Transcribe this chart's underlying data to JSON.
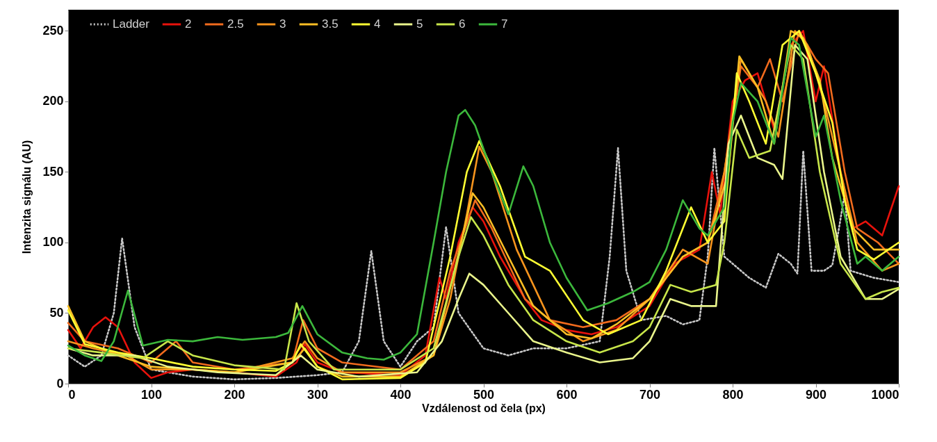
{
  "chart_data": {
    "type": "line",
    "xlabel": "Vzdálenost od čela (px)",
    "ylabel": "Intenzita signálu (AU)",
    "xlim": [
      0,
      1000
    ],
    "xticks": [
      0,
      100,
      200,
      300,
      400,
      500,
      600,
      700,
      800,
      900,
      {
        "value": 1000,
        "label": "1000"
      }
    ],
    "ylim": [
      0,
      265
    ],
    "yticks": [
      0,
      50,
      100,
      150,
      200,
      250
    ],
    "grid": false,
    "legend": "top",
    "series": [
      {
        "name": "Ladder",
        "color": "#c8c8c8",
        "line_style": "dotted",
        "x": [
          0,
          20,
          40,
          55,
          65,
          80,
          100,
          150,
          200,
          250,
          300,
          330,
          350,
          365,
          380,
          400,
          420,
          440,
          455,
          470,
          500,
          530,
          560,
          600,
          640,
          652,
          662,
          672,
          690,
          720,
          740,
          760,
          770,
          778,
          790,
          820,
          840,
          855,
          870,
          878,
          885,
          895,
          910,
          920,
          928,
          935,
          942,
          970,
          1000
        ],
        "values": [
          20,
          12,
          20,
          50,
          103,
          40,
          10,
          5,
          3,
          4,
          6,
          8,
          30,
          94,
          30,
          12,
          30,
          40,
          111,
          50,
          25,
          20,
          25,
          25,
          30,
          90,
          167,
          80,
          45,
          48,
          42,
          45,
          90,
          167,
          90,
          75,
          68,
          92,
          85,
          78,
          165,
          80,
          80,
          84,
          110,
          135,
          80,
          75,
          72
        ]
      },
      {
        "name": "2",
        "color": "#e8120c",
        "x": [
          0,
          15,
          30,
          45,
          60,
          80,
          100,
          120,
          150,
          200,
          250,
          275,
          285,
          300,
          330,
          400,
          430,
          447,
          455,
          470,
          487,
          500,
          520,
          550,
          570,
          600,
          630,
          660,
          700,
          730,
          760,
          775,
          785,
          800,
          815,
          830,
          850,
          870,
          885,
          900,
          910,
          930,
          945,
          960,
          980,
          1000
        ],
        "values": [
          38,
          25,
          40,
          47,
          40,
          15,
          4,
          8,
          10,
          8,
          5,
          15,
          28,
          15,
          8,
          6,
          20,
          75,
          60,
          100,
          125,
          115,
          90,
          60,
          45,
          38,
          35,
          40,
          55,
          85,
          95,
          150,
          120,
          200,
          215,
          220,
          180,
          240,
          250,
          200,
          225,
          150,
          110,
          115,
          105,
          140
        ]
      },
      {
        "name": "2.5",
        "color": "#f26b1d",
        "x": [
          0,
          20,
          60,
          100,
          130,
          150,
          200,
          270,
          283,
          300,
          330,
          400,
          440,
          460,
          490,
          510,
          550,
          580,
          620,
          660,
          700,
          740,
          770,
          790,
          810,
          830,
          845,
          860,
          880,
          900,
          915,
          935,
          950,
          975,
          1000
        ],
        "values": [
          43,
          30,
          25,
          15,
          30,
          15,
          10,
          15,
          45,
          25,
          15,
          10,
          30,
          80,
          130,
          110,
          60,
          45,
          40,
          45,
          60,
          90,
          100,
          150,
          225,
          210,
          230,
          200,
          250,
          230,
          220,
          150,
          110,
          100,
          85
        ]
      },
      {
        "name": "3",
        "color": "#f7941d",
        "x": [
          0,
          30,
          70,
          100,
          150,
          200,
          270,
          285,
          300,
          330,
          400,
          440,
          460,
          480,
          495,
          510,
          540,
          580,
          620,
          660,
          700,
          740,
          770,
          790,
          810,
          840,
          855,
          875,
          890,
          910,
          930,
          950,
          980,
          1000
        ],
        "values": [
          30,
          25,
          20,
          10,
          10,
          8,
          18,
          30,
          18,
          8,
          8,
          20,
          60,
          120,
          168,
          150,
          95,
          45,
          30,
          38,
          60,
          95,
          85,
          150,
          230,
          200,
          175,
          250,
          240,
          200,
          150,
          100,
          80,
          85
        ]
      },
      {
        "name": "3.5",
        "color": "#fbbf24",
        "x": [
          0,
          20,
          60,
          100,
          200,
          270,
          285,
          300,
          330,
          400,
          440,
          465,
          487,
          500,
          530,
          560,
          600,
          630,
          660,
          700,
          740,
          770,
          795,
          808,
          830,
          850,
          870,
          885,
          905,
          920,
          945,
          970,
          1000
        ],
        "values": [
          55,
          30,
          20,
          12,
          8,
          15,
          25,
          12,
          5,
          5,
          20,
          80,
          135,
          125,
          90,
          55,
          35,
          32,
          42,
          60,
          90,
          100,
          150,
          232,
          210,
          170,
          250,
          245,
          215,
          160,
          110,
          95,
          95
        ]
      },
      {
        "name": "4",
        "color": "#ffff33",
        "x": [
          0,
          20,
          60,
          100,
          150,
          200,
          250,
          270,
          280,
          300,
          330,
          400,
          430,
          460,
          480,
          495,
          520,
          550,
          580,
          620,
          650,
          690,
          720,
          740,
          750,
          770,
          790,
          805,
          820,
          840,
          860,
          880,
          900,
          920,
          935,
          950,
          970,
          1000
        ],
        "values": [
          52,
          28,
          22,
          18,
          12,
          10,
          9,
          15,
          28,
          12,
          3,
          4,
          15,
          90,
          150,
          172,
          140,
          90,
          80,
          45,
          35,
          45,
          80,
          110,
          125,
          100,
          115,
          220,
          200,
          170,
          240,
          250,
          220,
          185,
          130,
          95,
          88,
          100
        ]
      },
      {
        "name": "5",
        "color": "#eaf58c",
        "x": [
          0,
          30,
          80,
          120,
          180,
          250,
          280,
          300,
          350,
          420,
          450,
          470,
          483,
          500,
          530,
          560,
          600,
          640,
          680,
          700,
          725,
          750,
          780,
          795,
          810,
          830,
          850,
          860,
          875,
          890,
          910,
          930,
          960,
          980,
          1000
        ],
        "values": [
          25,
          20,
          20,
          12,
          8,
          6,
          20,
          10,
          5,
          8,
          30,
          60,
          78,
          70,
          50,
          30,
          22,
          15,
          18,
          30,
          60,
          55,
          55,
          170,
          190,
          160,
          155,
          145,
          240,
          230,
          150,
          90,
          60,
          60,
          67
        ]
      },
      {
        "name": "6",
        "color": "#c8e64a",
        "x": [
          0,
          40,
          90,
          120,
          150,
          200,
          260,
          275,
          290,
          320,
          400,
          440,
          470,
          485,
          500,
          530,
          560,
          600,
          640,
          680,
          700,
          725,
          750,
          780,
          790,
          805,
          820,
          845,
          870,
          885,
          905,
          930,
          960,
          980,
          1000
        ],
        "values": [
          25,
          22,
          18,
          30,
          20,
          13,
          10,
          57,
          30,
          10,
          10,
          25,
          90,
          118,
          105,
          70,
          45,
          30,
          22,
          30,
          40,
          70,
          65,
          70,
          100,
          180,
          160,
          165,
          240,
          230,
          150,
          85,
          60,
          65,
          68
        ]
      },
      {
        "name": "7",
        "color": "#3cb83c",
        "x": [
          0,
          20,
          40,
          55,
          72,
          90,
          120,
          150,
          180,
          210,
          250,
          265,
          282,
          300,
          330,
          360,
          380,
          400,
          420,
          440,
          455,
          470,
          478,
          490,
          510,
          530,
          548,
          560,
          580,
          600,
          625,
          650,
          680,
          700,
          720,
          740,
          760,
          770,
          790,
          800,
          810,
          830,
          850,
          870,
          880,
          900,
          910,
          930,
          950,
          960,
          980,
          1000
        ],
        "values": [
          27,
          20,
          16,
          30,
          66,
          27,
          31,
          30,
          33,
          31,
          33,
          36,
          55,
          35,
          22,
          18,
          17,
          22,
          35,
          100,
          150,
          190,
          194,
          183,
          150,
          120,
          154,
          140,
          100,
          75,
          52,
          57,
          65,
          72,
          95,
          130,
          110,
          105,
          125,
          185,
          213,
          200,
          170,
          245,
          240,
          175,
          190,
          130,
          85,
          90,
          80,
          90
        ]
      }
    ]
  }
}
